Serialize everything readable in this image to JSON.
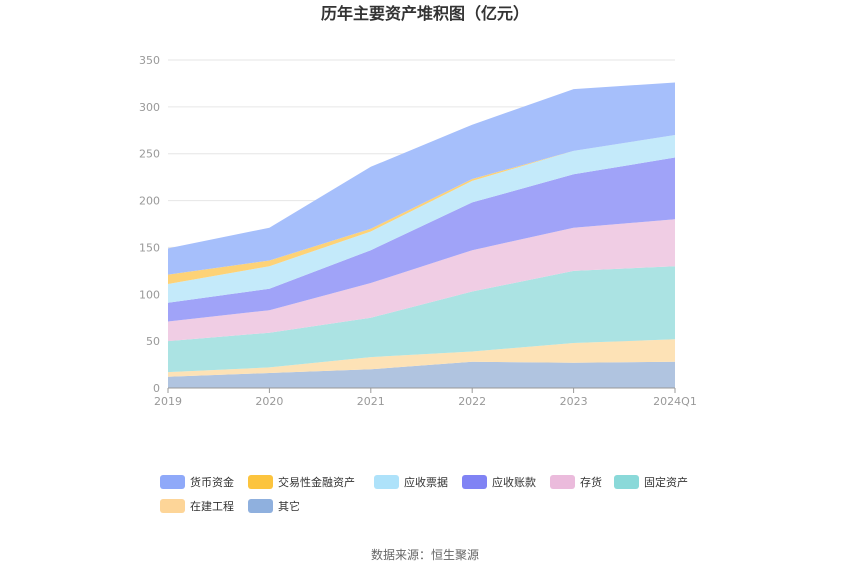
{
  "chart_data": {
    "type": "area",
    "title": "历年主要资产堆积图（亿元）",
    "categories": [
      "2019",
      "2020",
      "2021",
      "2022",
      "2023",
      "2024Q1"
    ],
    "yticks": [
      "0",
      "50",
      "100",
      "150",
      "200",
      "250",
      "300",
      "350"
    ],
    "ylim": [
      0,
      350
    ],
    "stacked": true,
    "grid": true,
    "legend_position": "bottom",
    "series": [
      {
        "name": "其它",
        "color": "#b0c4e0",
        "legend_color": "#8fb0de",
        "values": [
          12,
          16,
          20,
          28,
          27,
          28
        ]
      },
      {
        "name": "在建工程",
        "color": "#fde2b6",
        "legend_color": "#fdd598",
        "values": [
          5,
          6,
          13,
          11,
          21,
          24
        ]
      },
      {
        "name": "固定资产",
        "color": "#abe3e3",
        "legend_color": "#8ad9d9",
        "values": [
          33,
          37,
          42,
          64,
          77,
          78
        ]
      },
      {
        "name": "存货",
        "color": "#f0cde4",
        "legend_color": "#ebbbdc",
        "values": [
          21,
          24,
          37,
          44,
          46,
          50
        ]
      },
      {
        "name": "应收账款",
        "color": "#a0a3f8",
        "legend_color": "#8083f4",
        "values": [
          20,
          23,
          35,
          51,
          57,
          66
        ]
      },
      {
        "name": "应收票据",
        "color": "#c4eafa",
        "legend_color": "#aee2fa",
        "values": [
          20,
          24,
          20,
          23,
          25,
          24
        ]
      },
      {
        "name": "交易性金融资产",
        "color": "#fdd277",
        "legend_color": "#fcc43e",
        "values": [
          10,
          6,
          3,
          2,
          0,
          0
        ]
      },
      {
        "name": "货币资金",
        "color": "#a6bffb",
        "legend_color": "#8fa9f9",
        "values": [
          28,
          35,
          66,
          58,
          66,
          56
        ]
      }
    ],
    "legend_order": [
      "货币资金",
      "交易性金融资产",
      "应收票据",
      "应收账款",
      "存货",
      "固定资产",
      "在建工程",
      "其它"
    ]
  },
  "footer": {
    "source": "数据来源：恒生聚源"
  }
}
